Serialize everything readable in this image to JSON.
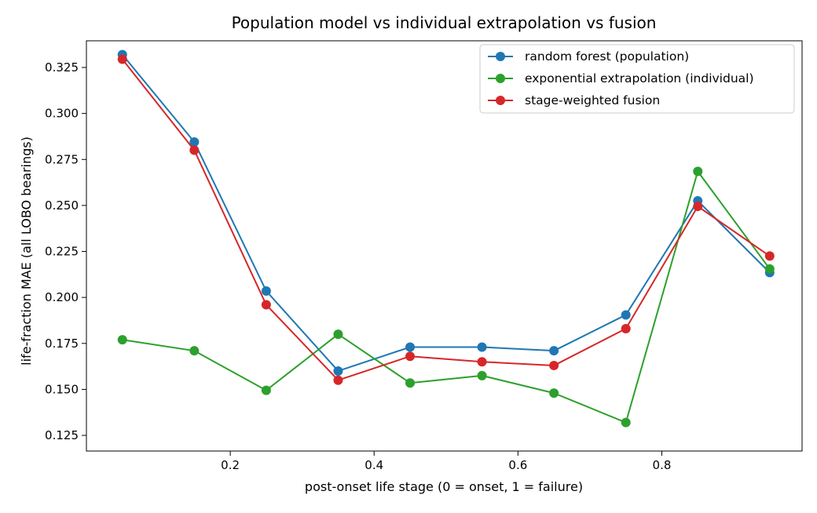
{
  "chart_data": {
    "type": "line",
    "title": "Population model vs individual extrapolation vs fusion",
    "xlabel": "post-onset life stage (0 = onset, 1 = failure)",
    "ylabel": "life-fraction MAE (all LOBO bearings)",
    "xlim": [
      0.0,
      0.995
    ],
    "ylim": [
      0.1165,
      0.3395
    ],
    "xticks": [
      0.2,
      0.4,
      0.6,
      0.8
    ],
    "xtick_labels": [
      "0.2",
      "0.4",
      "0.6",
      "0.8"
    ],
    "yticks": [
      0.125,
      0.15,
      0.175,
      0.2,
      0.225,
      0.25,
      0.275,
      0.3,
      0.325
    ],
    "ytick_labels": [
      "0.125",
      "0.150",
      "0.175",
      "0.200",
      "0.225",
      "0.250",
      "0.275",
      "0.300",
      "0.325"
    ],
    "grid": false,
    "legend_position": "top-right",
    "x": [
      0.05,
      0.15,
      0.25,
      0.35,
      0.45,
      0.55,
      0.65,
      0.75,
      0.85,
      0.95
    ],
    "series": [
      {
        "name": "random forest (population)",
        "color": "#1f77b4",
        "values": [
          0.332,
          0.2845,
          0.2035,
          0.16,
          0.173,
          0.173,
          0.171,
          0.1905,
          0.2525,
          0.2135
        ]
      },
      {
        "name": "exponential extrapolation (individual)",
        "color": "#2ca02c",
        "values": [
          0.177,
          0.171,
          0.1495,
          0.18,
          0.1535,
          0.1575,
          0.148,
          0.132,
          0.2685,
          0.2155
        ]
      },
      {
        "name": "stage-weighted fusion",
        "color": "#d62728",
        "values": [
          0.3295,
          0.28,
          0.196,
          0.155,
          0.168,
          0.165,
          0.163,
          0.183,
          0.2495,
          0.2225
        ]
      }
    ]
  }
}
